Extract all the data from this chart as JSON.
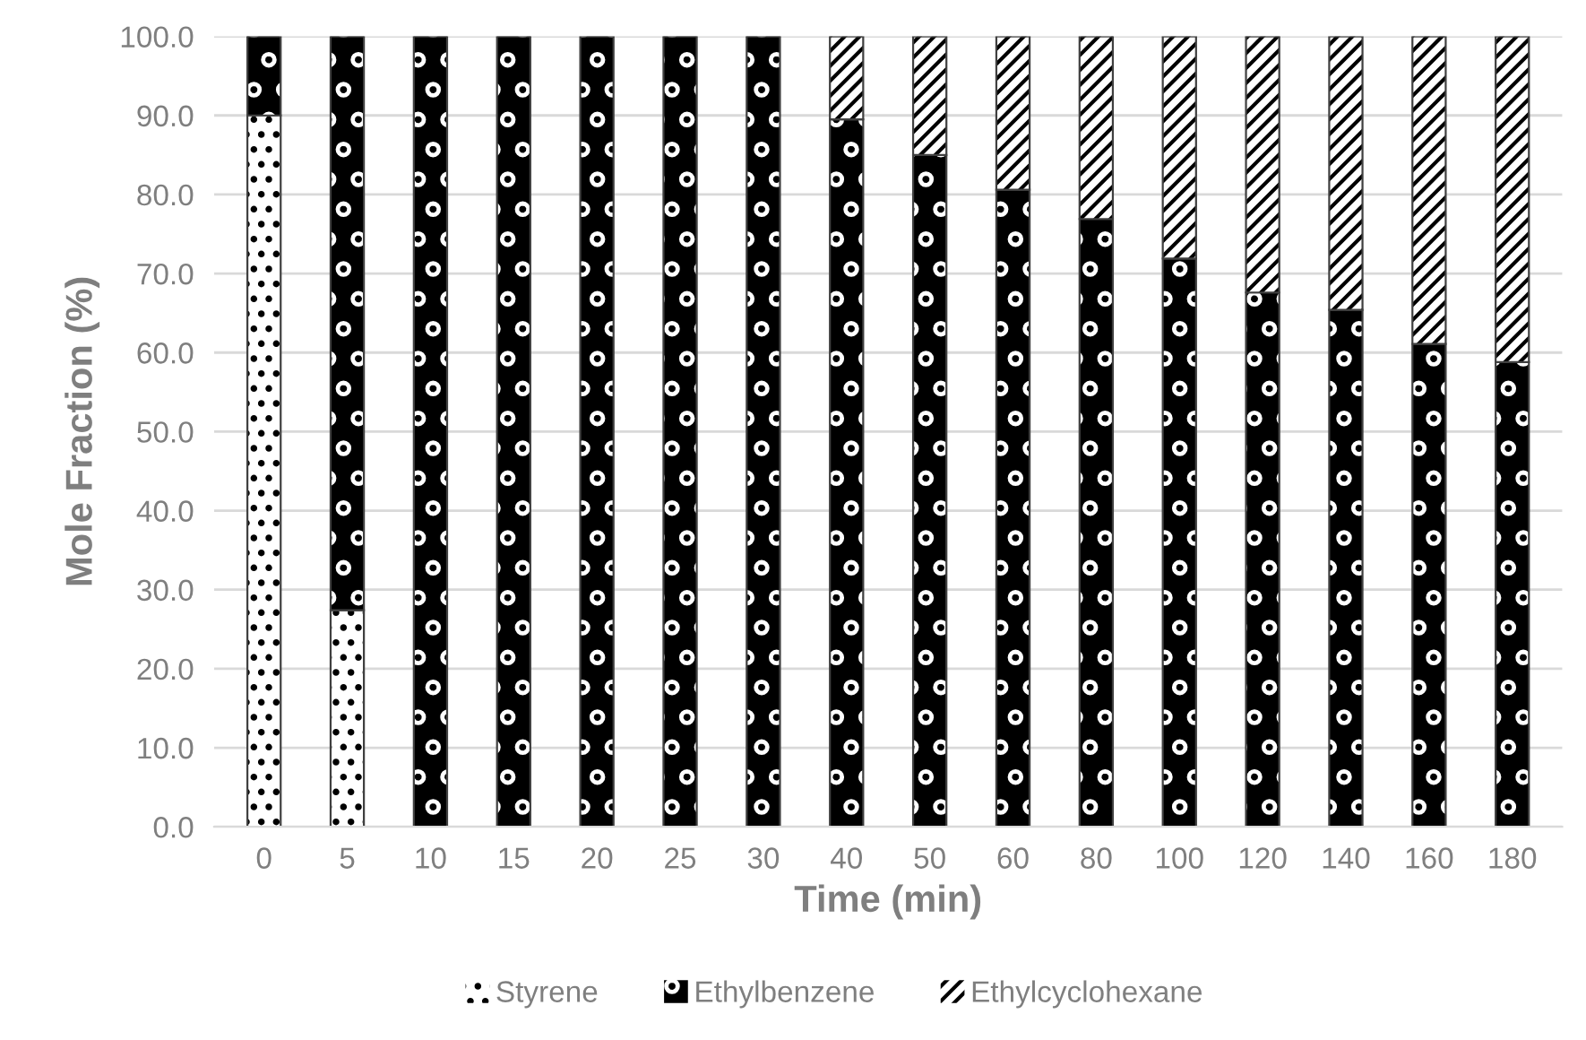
{
  "chart_data": {
    "type": "bar",
    "stacked": true,
    "xlabel": "Time (min)",
    "ylabel": "Mole Fraction (%)",
    "categories": [
      "0",
      "5",
      "10",
      "15",
      "20",
      "25",
      "30",
      "40",
      "50",
      "60",
      "80",
      "100",
      "120",
      "140",
      "160",
      "180"
    ],
    "series": [
      {
        "name": "Styrene",
        "color": "#ffffff",
        "values": [
          90.0,
          27.4,
          0,
          0,
          0,
          0,
          0,
          0,
          0,
          0,
          0,
          0,
          0,
          0,
          0,
          0
        ]
      },
      {
        "name": "Ethylbenzene",
        "color": "#000000",
        "values": [
          10.0,
          72.6,
          100,
          100,
          100,
          100,
          100,
          89.5,
          85.0,
          80.6,
          76.9,
          71.9,
          67.6,
          65.4,
          61.1,
          58.8
        ]
      },
      {
        "name": "Ethylcyclohexane",
        "color": "#ffffff",
        "values": [
          0,
          0,
          0,
          0,
          0,
          0,
          0,
          10.5,
          15.0,
          19.4,
          23.1,
          28.1,
          32.4,
          34.6,
          38.9,
          41.2
        ]
      }
    ],
    "ylim": [
      0,
      100
    ],
    "yticks": [
      {
        "value": 0,
        "label": "0.0"
      },
      {
        "value": 10,
        "label": "10.0"
      },
      {
        "value": 20,
        "label": "20.0"
      },
      {
        "value": 30,
        "label": "30.0"
      },
      {
        "value": 40,
        "label": "40.0"
      },
      {
        "value": 50,
        "label": "50.0"
      },
      {
        "value": 60,
        "label": "60.0"
      },
      {
        "value": 70,
        "label": "70.0"
      },
      {
        "value": 80,
        "label": "80.0"
      },
      {
        "value": 90,
        "label": "90.0"
      },
      {
        "value": 100,
        "label": "100.0"
      }
    ],
    "grid": "y",
    "legend": "bottom"
  }
}
